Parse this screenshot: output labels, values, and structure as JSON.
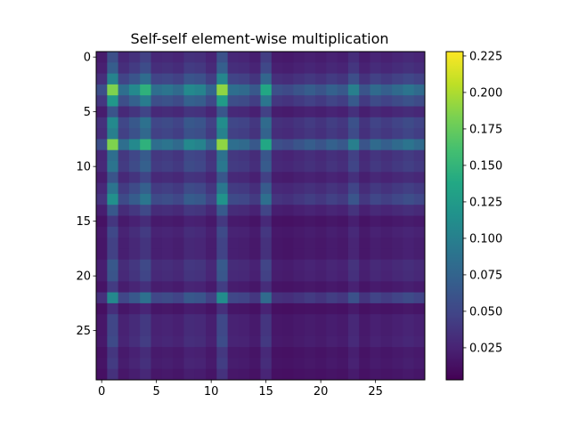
{
  "chart_data": {
    "type": "heatmap",
    "title": "Self-self element-wise multiplication",
    "xlabel": "",
    "ylabel": "",
    "n_rows": 30,
    "n_cols": 30,
    "x_ticks": [
      0,
      5,
      10,
      15,
      20,
      25
    ],
    "y_ticks": [
      0,
      5,
      10,
      15,
      20,
      25
    ],
    "colormap": "viridis",
    "vmin": 0.003,
    "vmax": 0.228,
    "colorbar_ticks": [
      0.025,
      0.05,
      0.075,
      0.1,
      0.125,
      0.15,
      0.175,
      0.2,
      0.225
    ],
    "colorbar_tick_labels": [
      "0.025",
      "0.050",
      "0.075",
      "0.100",
      "0.125",
      "0.150",
      "0.175",
      "0.200",
      "0.225"
    ],
    "row_weights": [
      0.28,
      0.34,
      0.52,
      0.95,
      0.62,
      0.3,
      0.55,
      0.5,
      0.95,
      0.42,
      0.45,
      0.3,
      0.45,
      0.58,
      0.32,
      0.18,
      0.25,
      0.22,
      0.22,
      0.32,
      0.3,
      0.2,
      0.55,
      0.15,
      0.24,
      0.24,
      0.26,
      0.18,
      0.2,
      0.16
    ],
    "col_weights": [
      0.28,
      0.95,
      0.42,
      0.55,
      0.75,
      0.42,
      0.45,
      0.4,
      0.55,
      0.52,
      0.38,
      0.98,
      0.42,
      0.4,
      0.32,
      0.7,
      0.28,
      0.26,
      0.3,
      0.34,
      0.3,
      0.36,
      0.32,
      0.5,
      0.3,
      0.4,
      0.35,
      0.4,
      0.45,
      0.4
    ],
    "row_col_scale": 0.2,
    "value_offset": 0.004
  }
}
